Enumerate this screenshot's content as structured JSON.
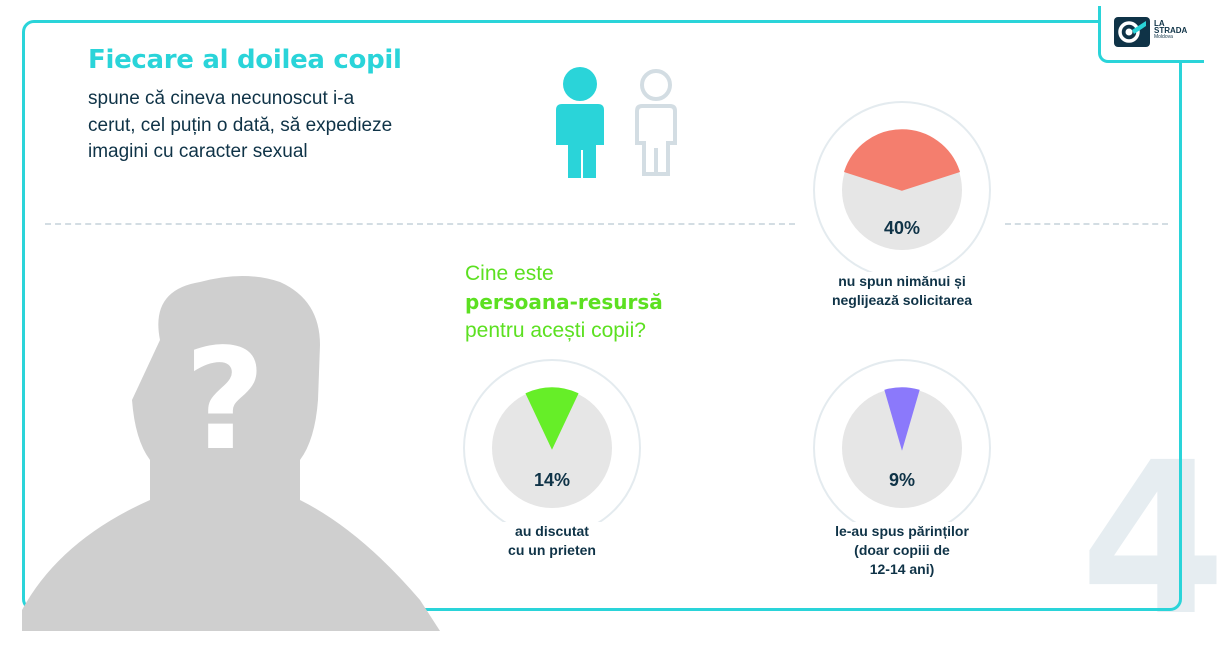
{
  "logo": {
    "name_line1": "LA",
    "name_line2": "STRADA",
    "name_line3": "Moldova"
  },
  "headline": "Fiecare al doilea copil",
  "subtext_lines": [
    "spune că cineva necunoscut i-a",
    "cerut, cel puțin o dată, să expedieze",
    "imagini cu caracter sexual"
  ],
  "question": {
    "line1": "Cine este",
    "line2": "persoana-resursă",
    "line3": "pentru acești copii?"
  },
  "stats": [
    {
      "percent": 40,
      "label": "40%",
      "caption_lines": [
        "nu spun nimănui și",
        "neglijează solicitarea"
      ],
      "color": "#f47e6e"
    },
    {
      "percent": 14,
      "label": "14%",
      "caption_lines": [
        "au discutat",
        "cu un prieten"
      ],
      "color": "#66ee28"
    },
    {
      "percent": 9,
      "label": "9%",
      "caption_lines": [
        "le-au spus părinților",
        "(doar copiii de",
        "12-14 ani)"
      ],
      "color": "#8b79fb"
    }
  ],
  "page_number": "4",
  "colors": {
    "accent": "#2ad4d9",
    "text": "#0f3347",
    "green": "#5ce021"
  }
}
